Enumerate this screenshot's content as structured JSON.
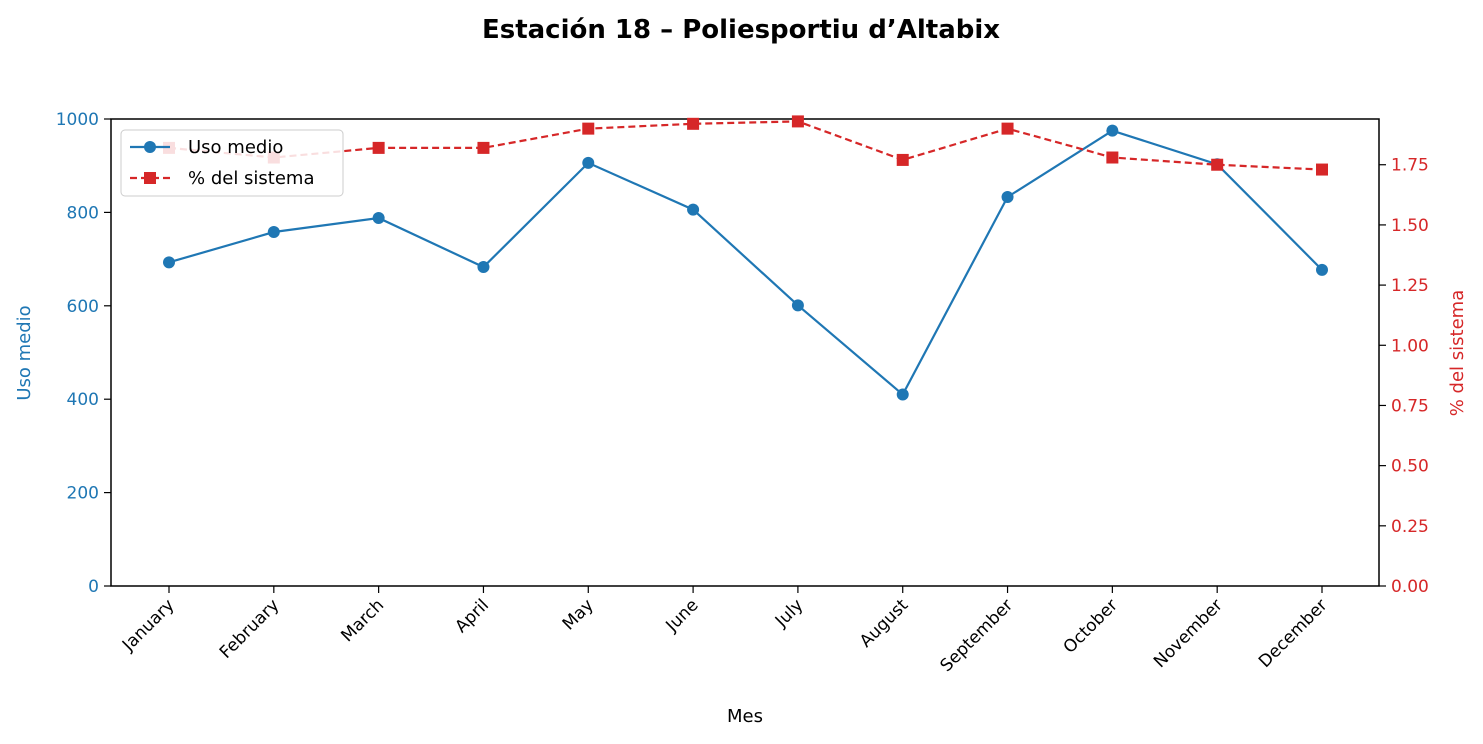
{
  "chart_data": {
    "type": "line",
    "title": "Estación 18 – Poliesportiu d’Altabix",
    "xlabel": "Mes",
    "ylabel_left": "Uso medio",
    "ylabel_right": "% del sistema",
    "categories": [
      "January",
      "February",
      "March",
      "April",
      "May",
      "June",
      "July",
      "August",
      "September",
      "October",
      "November",
      "December"
    ],
    "y_left": {
      "lim": [
        0,
        1000
      ],
      "ticks": [
        0,
        200,
        400,
        600,
        800,
        1000
      ],
      "tick_labels": [
        "0",
        "200",
        "400",
        "600",
        "800",
        "1000"
      ]
    },
    "y_right": {
      "lim": [
        0,
        1.94
      ],
      "ticks": [
        0,
        0.25,
        0.5,
        0.75,
        1.0,
        1.25,
        1.5,
        1.75
      ],
      "tick_labels": [
        "0.00",
        "0.25",
        "0.50",
        "0.75",
        "1.00",
        "1.25",
        "1.50",
        "1.75"
      ]
    },
    "series": [
      {
        "name": "Uso medio",
        "axis": "left",
        "color": "#1f77b4",
        "line_style": "solid",
        "marker": "circle",
        "values": [
          693,
          758,
          788,
          683,
          906,
          806,
          601,
          410,
          833,
          975,
          903,
          677
        ]
      },
      {
        "name": "% del sistema",
        "axis": "right",
        "color": "#d62728",
        "line_style": "dashed",
        "marker": "square",
        "values": [
          1.82,
          1.78,
          1.82,
          1.82,
          1.9,
          1.92,
          1.93,
          1.77,
          1.9,
          1.78,
          1.75,
          1.73
        ]
      }
    ],
    "legend_position": "upper-left",
    "grid": false
  }
}
